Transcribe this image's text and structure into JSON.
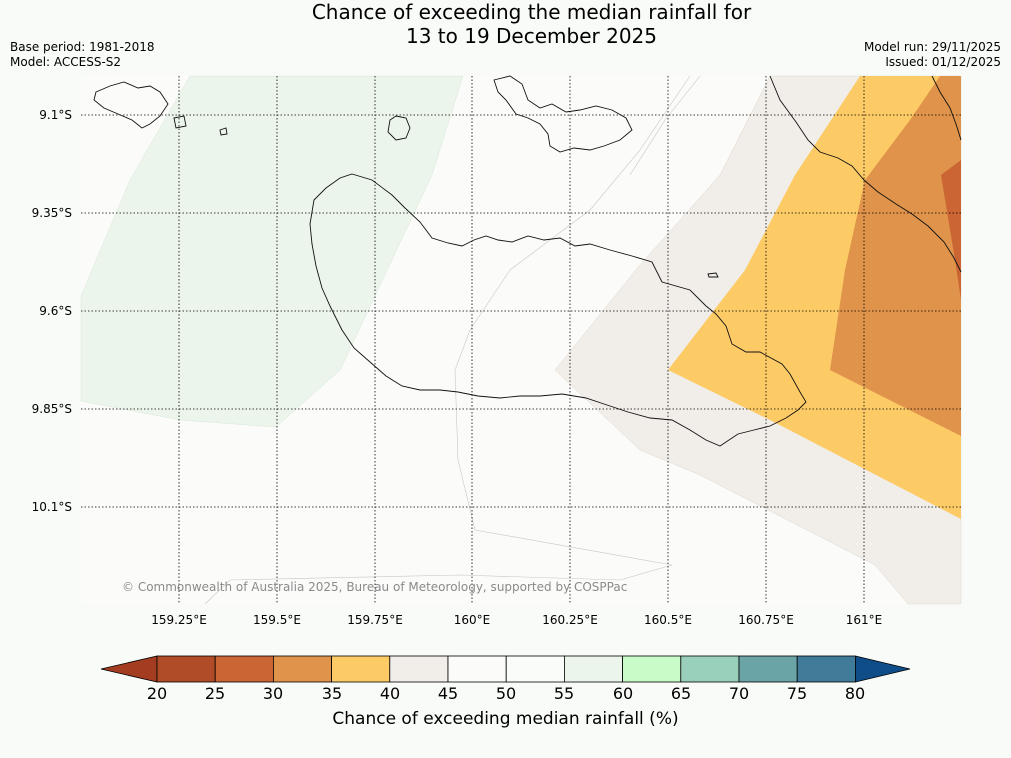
{
  "title": {
    "line1": "Chance of exceeding the median rainfall for",
    "line2": "13 to 19 December 2025"
  },
  "meta": {
    "base_period": "Base period: 1981-2018",
    "model": "Model: ACCESS-S2",
    "model_run": "Model run: 29/11/2025",
    "issued": "Issued: 01/12/2025"
  },
  "map": {
    "latitude_labels": [
      "9.1°S",
      "9.35°S",
      "9.6°S",
      "9.85°S",
      "10.1°S"
    ],
    "longitude_labels": [
      "159.25°E",
      "159.5°E",
      "159.75°E",
      "160°E",
      "160.25°E",
      "160.5°E",
      "160.75°E",
      "161°E"
    ],
    "copyright": "© Commonwealth of Australia 2025, Bureau of Meteorology, supported by COSPPac"
  },
  "colorbar": {
    "ticks": [
      "20",
      "25",
      "30",
      "35",
      "40",
      "45",
      "50",
      "55",
      "60",
      "65",
      "70",
      "75",
      "80"
    ],
    "label": "Chance of exceeding median rainfall (%)",
    "colors": [
      "#a33c21",
      "#b04c27",
      "#cb6534",
      "#e0934a",
      "#fdcb66",
      "#f1ede8",
      "#fbfcfa",
      "#f9fcf9",
      "#ebf5eb",
      "#c9fbc9",
      "#99d0bc",
      "#6aa4a7",
      "#407b9a",
      "#0e4d87"
    ],
    "colors_note": "under, 20-25, 25-30, 30-35, 35-40, 40-45, 45-50, 50-55, 55-60, 60-65, 65-70, 70-75, 75-80, over"
  }
}
